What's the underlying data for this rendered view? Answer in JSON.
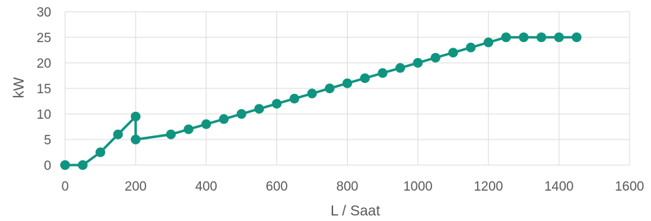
{
  "chart_data": {
    "type": "line",
    "title": "",
    "xlabel": "L / Saat",
    "ylabel": "kW",
    "xlim": [
      0,
      1600
    ],
    "ylim": [
      0,
      30
    ],
    "x_ticks": [
      "0",
      "200",
      "400",
      "600",
      "800",
      "1000",
      "1200",
      "1400",
      "1600"
    ],
    "y_ticks": [
      "0",
      "5",
      "10",
      "15",
      "20",
      "25",
      "30"
    ],
    "grid": true,
    "legend": "none",
    "series": [
      {
        "color": "#0f9480",
        "points": [
          [
            0,
            0
          ],
          [
            50,
            0
          ],
          [
            100,
            2.5
          ],
          [
            150,
            6
          ],
          [
            200,
            9.5
          ],
          [
            200,
            5
          ],
          [
            300,
            6
          ],
          [
            350,
            7
          ],
          [
            400,
            8
          ],
          [
            450,
            9
          ],
          [
            500,
            10
          ],
          [
            550,
            11
          ],
          [
            600,
            12
          ],
          [
            650,
            13
          ],
          [
            700,
            14
          ],
          [
            750,
            15
          ],
          [
            800,
            16
          ],
          [
            850,
            17
          ],
          [
            900,
            18
          ],
          [
            950,
            19
          ],
          [
            1000,
            20
          ],
          [
            1050,
            21
          ],
          [
            1100,
            22
          ],
          [
            1150,
            23
          ],
          [
            1200,
            24
          ],
          [
            1250,
            25
          ],
          [
            1300,
            25
          ],
          [
            1350,
            25
          ],
          [
            1400,
            25
          ],
          [
            1450,
            25
          ]
        ]
      }
    ]
  }
}
